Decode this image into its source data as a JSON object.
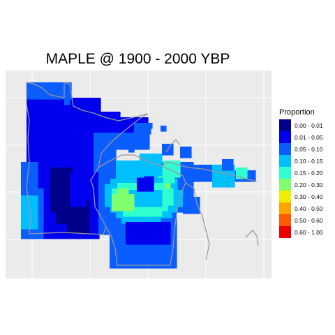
{
  "title": "MAPLE @ 1900 - 2000 YBP",
  "legend": {
    "title": "Proportion",
    "items": [
      {
        "label": "0.00 - 0.01",
        "color": "#00008b"
      },
      {
        "label": "0.01 - 0.05",
        "color": "#0000ee"
      },
      {
        "label": "0.05 - 0.10",
        "color": "#0a5dff"
      },
      {
        "label": "0.10 - 0.15",
        "color": "#00bfff"
      },
      {
        "label": "0.15 - 0.20",
        "color": "#30ffd0"
      },
      {
        "label": "0.20 - 0.30",
        "color": "#7fff6e"
      },
      {
        "label": "0.30 - 0.40",
        "color": "#eeee00"
      },
      {
        "label": "0.40 - 0.50",
        "color": "#ffa500"
      },
      {
        "label": "0.50 - 0.60",
        "color": "#ff5a00"
      },
      {
        "label": "0.60 - 1.00",
        "color": "#ee0000"
      }
    ]
  },
  "colors": {
    "panel_background": "#ebebeb",
    "grid_lines": "#ffffff",
    "borders": "#999999"
  }
}
